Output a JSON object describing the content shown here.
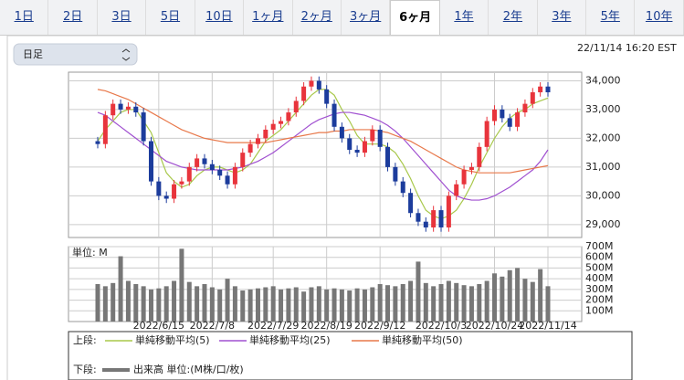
{
  "tabs": [
    "1日",
    "2日",
    "3日",
    "5日",
    "10日",
    "1ヶ月",
    "2ヶ月",
    "3ヶ月",
    "6ヶ月",
    "1年",
    "2年",
    "3年",
    "5年",
    "10年"
  ],
  "selected_tab": 8,
  "dropdown": "日足",
  "timestamp": "22/11/14 16:20 EST",
  "legend": {
    "upper": "上段:",
    "lower": "下段:"
  },
  "chart_data": [
    {
      "type": "candlestick",
      "up_color": "#e8343c",
      "down_color": "#1c3c9c",
      "grid": true,
      "categories": [
        null,
        null,
        null,
        null,
        null,
        null,
        null,
        null,
        "2022/6/15",
        null,
        null,
        null,
        null,
        null,
        null,
        "2022/7/8",
        null,
        null,
        null,
        null,
        null,
        null,
        null,
        "2022/7/29",
        null,
        null,
        null,
        null,
        null,
        null,
        "2022/8/19",
        null,
        null,
        null,
        null,
        null,
        null,
        "2022/9/12",
        null,
        null,
        null,
        null,
        null,
        null,
        null,
        "2022/10/3",
        null,
        null,
        null,
        null,
        null,
        null,
        "2022/10/24",
        null,
        null,
        null,
        null,
        null,
        null,
        "2022/11/14"
      ],
      "open": [
        31900,
        31800,
        32800,
        33200,
        33000,
        33100,
        32900,
        31900,
        30500,
        30000,
        29900,
        30400,
        30500,
        31000,
        31300,
        31100,
        30900,
        30700,
        30400,
        31000,
        31500,
        31800,
        32000,
        32300,
        32500,
        32600,
        32900,
        33300,
        33800,
        34000,
        33700,
        33200,
        32400,
        32000,
        31600,
        31500,
        31900,
        32300,
        31700,
        31000,
        30500,
        30100,
        29400,
        29100,
        28900,
        29500,
        28900,
        30000,
        30400,
        30900,
        31000,
        31700,
        32600,
        33000,
        32700,
        32400,
        32900,
        33200,
        33600,
        33800
      ],
      "high": [
        32050,
        32950,
        33350,
        33350,
        33250,
        33250,
        33050,
        32050,
        30650,
        30150,
        30550,
        30650,
        31150,
        31450,
        31450,
        31250,
        31050,
        30850,
        31150,
        31650,
        31950,
        32150,
        32450,
        32650,
        32750,
        33050,
        33450,
        33950,
        34150,
        34150,
        33850,
        33350,
        32550,
        32150,
        31750,
        32050,
        32450,
        32450,
        31850,
        31150,
        30650,
        30250,
        29550,
        29250,
        29650,
        29650,
        30150,
        30550,
        31050,
        31150,
        31850,
        32750,
        33150,
        33150,
        32850,
        33050,
        33350,
        33750,
        33950,
        33950
      ],
      "low": [
        31650,
        31650,
        32650,
        32850,
        32850,
        32750,
        31750,
        30350,
        29850,
        29750,
        29750,
        30250,
        30350,
        30850,
        30950,
        30750,
        30550,
        30250,
        30250,
        30850,
        31350,
        31650,
        31850,
        32150,
        32350,
        32450,
        32750,
        33150,
        33650,
        33550,
        33050,
        32250,
        31850,
        31450,
        31350,
        31350,
        31750,
        31550,
        30850,
        30350,
        29950,
        29250,
        28950,
        28750,
        28750,
        28750,
        28750,
        29850,
        30250,
        30750,
        30850,
        31550,
        32450,
        32550,
        32250,
        32250,
        32750,
        33050,
        33450,
        33450
      ],
      "close": [
        31800,
        32800,
        33200,
        33000,
        33100,
        32900,
        31900,
        30500,
        30000,
        29900,
        30400,
        30500,
        31000,
        31300,
        31100,
        30900,
        30700,
        30400,
        31000,
        31500,
        31800,
        32000,
        32300,
        32500,
        32600,
        32900,
        33300,
        33800,
        34000,
        33700,
        33200,
        32400,
        32000,
        31600,
        31500,
        31900,
        32300,
        31700,
        31000,
        30500,
        30100,
        29400,
        29100,
        28900,
        29500,
        28900,
        30000,
        30400,
        30900,
        31000,
        31700,
        32600,
        33000,
        32700,
        32400,
        32900,
        33200,
        33600,
        33800,
        33600
      ],
      "series": [
        {
          "name": "単純移動平均(5)",
          "color": "#a8c84a",
          "values": [
            31900,
            32300,
            32600,
            32900,
            33000,
            33000,
            32600,
            32200,
            31500,
            30800,
            30500,
            30300,
            30400,
            30700,
            30900,
            31000,
            31000,
            30900,
            30800,
            30900,
            31100,
            31500,
            31900,
            32100,
            32300,
            32600,
            32900,
            33200,
            33500,
            33700,
            33700,
            33500,
            33000,
            32600,
            32100,
            31800,
            31800,
            31800,
            31700,
            31500,
            31100,
            30600,
            30000,
            29500,
            29300,
            29200,
            29300,
            29500,
            29900,
            30400,
            31000,
            31500,
            32000,
            32400,
            32700,
            32900,
            33000,
            33200,
            33300,
            33400
          ]
        },
        {
          "name": "単純移動平均(25)",
          "color": "#a050d0",
          "values": [
            32900,
            32800,
            32600,
            32400,
            32200,
            32000,
            31800,
            31600,
            31400,
            31200,
            31100,
            31000,
            30950,
            30900,
            30900,
            30900,
            30900,
            30900,
            30950,
            31000,
            31100,
            31200,
            31350,
            31500,
            31700,
            31900,
            32100,
            32300,
            32500,
            32650,
            32750,
            32850,
            32900,
            32900,
            32850,
            32800,
            32700,
            32600,
            32450,
            32250,
            32000,
            31700,
            31400,
            31100,
            30800,
            30500,
            30200,
            30000,
            29900,
            29850,
            29850,
            29900,
            30000,
            30150,
            30300,
            30500,
            30700,
            30900,
            31200,
            31600
          ]
        },
        {
          "name": "単純移動平均(50)",
          "color": "#e8784a",
          "values": [
            33700,
            33650,
            33550,
            33450,
            33350,
            33200,
            33050,
            32900,
            32750,
            32600,
            32450,
            32300,
            32200,
            32100,
            32000,
            31950,
            31900,
            31850,
            31850,
            31850,
            31850,
            31850,
            31850,
            31900,
            31950,
            32000,
            32050,
            32100,
            32150,
            32200,
            32200,
            32250,
            32250,
            32300,
            32300,
            32300,
            32300,
            32250,
            32200,
            32100,
            32000,
            31900,
            31750,
            31600,
            31450,
            31300,
            31150,
            31000,
            30900,
            30850,
            30800,
            30800,
            30800,
            30800,
            30800,
            30850,
            30900,
            30950,
            31000,
            31050
          ]
        }
      ],
      "ylim": [
        28550,
        34300
      ],
      "yticks": [
        {
          "value": 29000,
          "label": "29,000"
        },
        {
          "value": 30000,
          "label": "30,000"
        },
        {
          "value": 31000,
          "label": "31,000"
        },
        {
          "value": 32000,
          "label": "32,000"
        },
        {
          "value": 33000,
          "label": "33,000"
        },
        {
          "value": 34000,
          "label": "34,000"
        }
      ]
    },
    {
      "type": "bar",
      "unit_label": "単位: M",
      "grid": true,
      "series": [
        {
          "name": "出来高 単位:(M株/口/枚)",
          "color": "#777777",
          "values": [
            350,
            330,
            360,
            610,
            380,
            350,
            330,
            300,
            310,
            330,
            380,
            680,
            370,
            330,
            350,
            320,
            300,
            400,
            330,
            290,
            300,
            310,
            320,
            330,
            300,
            310,
            320,
            280,
            320,
            330,
            300,
            310,
            300,
            290,
            310,
            300,
            320,
            350,
            340,
            330,
            350,
            380,
            560,
            360,
            330,
            350,
            380,
            360,
            340,
            330,
            350,
            380,
            450,
            420,
            480,
            500,
            400,
            370,
            490,
            330
          ]
        }
      ],
      "ylim": [
        0,
        700
      ],
      "yticks": [
        {
          "value": 100,
          "label": "100M"
        },
        {
          "value": 200,
          "label": "200M"
        },
        {
          "value": 300,
          "label": "300M"
        },
        {
          "value": 400,
          "label": "400M"
        },
        {
          "value": 500,
          "label": "500M"
        },
        {
          "value": 600,
          "label": "600M"
        },
        {
          "value": 700,
          "label": "700M"
        }
      ]
    }
  ]
}
